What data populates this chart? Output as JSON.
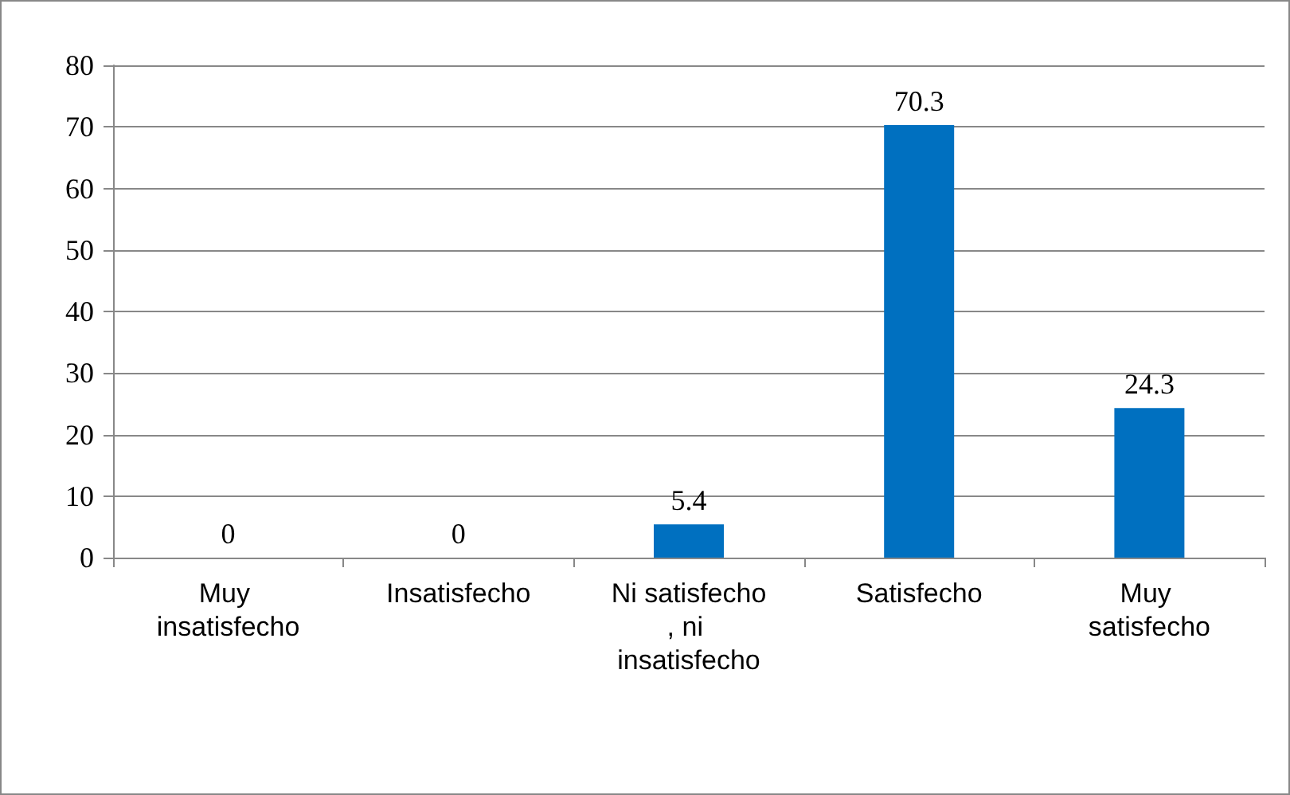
{
  "chart_data": {
    "type": "bar",
    "categories": [
      "Muy insatisfecho",
      "Insatisfecho",
      "Ni satisfecho, ni insatisfecho",
      "Satisfecho",
      "Muy satisfecho"
    ],
    "values": [
      0,
      0,
      5.4,
      70.3,
      24.3
    ],
    "color": "#0070c0",
    "ylim": [
      0,
      80
    ],
    "yticks": [
      0,
      10,
      20,
      30,
      40,
      50,
      60,
      70,
      80
    ],
    "grid": "y",
    "data_labels": true
  }
}
